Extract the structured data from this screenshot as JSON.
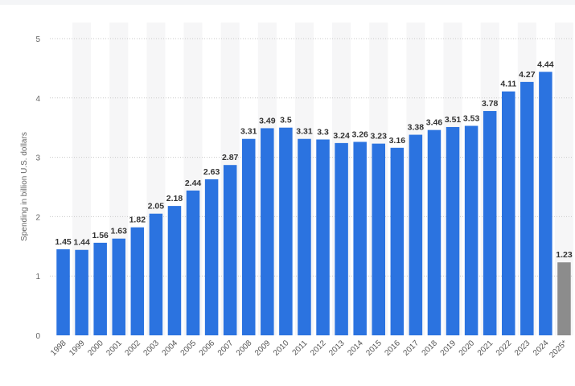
{
  "chart_data": {
    "type": "bar",
    "title": "",
    "xlabel": "",
    "ylabel": "Spending in billion U.S. dollars",
    "ylim": [
      0,
      5
    ],
    "yticks": [
      "0",
      "1",
      "2",
      "3",
      "4",
      "5"
    ],
    "grid": true,
    "legend": "none",
    "categories": [
      "1998",
      "1999",
      "2000",
      "2001",
      "2002",
      "2003",
      "2004",
      "2005",
      "2006",
      "2007",
      "2008",
      "2009",
      "2010",
      "2011",
      "2012",
      "2013",
      "2014",
      "2015",
      "2016",
      "2017",
      "2018",
      "2019",
      "2020",
      "2021",
      "2022",
      "2023",
      "2024",
      "2025*"
    ],
    "values": [
      1.45,
      1.44,
      1.56,
      1.63,
      1.82,
      2.05,
      2.18,
      2.44,
      2.63,
      2.87,
      3.31,
      3.49,
      3.5,
      3.31,
      3.3,
      3.24,
      3.26,
      3.23,
      3.16,
      3.38,
      3.46,
      3.51,
      3.53,
      3.78,
      4.11,
      4.27,
      4.44,
      1.23
    ],
    "value_labels": [
      "1.45",
      "1.44",
      "1.56",
      "1.63",
      "1.82",
      "2.05",
      "2.18",
      "2.44",
      "2.63",
      "2.87",
      "3.31",
      "3.49",
      "3.5",
      "3.31",
      "3.3",
      "3.24",
      "3.26",
      "3.23",
      "3.16",
      "3.38",
      "3.46",
      "3.51",
      "3.53",
      "3.78",
      "4.11",
      "4.27",
      "4.44",
      "1.23"
    ],
    "bar_colors": {
      "actual": "#2b73e0",
      "projected": "#8c8c8c"
    },
    "projected_index": 27
  }
}
